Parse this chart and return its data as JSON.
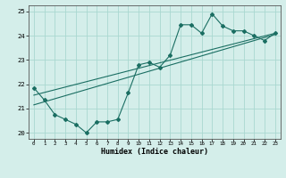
{
  "title": "",
  "xlabel": "Humidex (Indice chaleur)",
  "bg_color": "#d4eeea",
  "line_color": "#1a6e62",
  "grid_color": "#aad8d0",
  "xlim": [
    -0.5,
    23.5
  ],
  "ylim": [
    19.75,
    25.25
  ],
  "xticks": [
    0,
    1,
    2,
    3,
    4,
    5,
    6,
    7,
    8,
    9,
    10,
    11,
    12,
    13,
    14,
    15,
    16,
    17,
    18,
    19,
    20,
    21,
    22,
    23
  ],
  "yticks": [
    20,
    21,
    22,
    23,
    24,
    25
  ],
  "series1_y": [
    21.85,
    21.35,
    20.75,
    20.55,
    20.35,
    20.0,
    20.45,
    20.45,
    20.55,
    21.65,
    22.8,
    22.9,
    22.7,
    23.2,
    24.45,
    24.45,
    24.1,
    24.9,
    24.4,
    24.2,
    24.2,
    24.0,
    23.8,
    24.1
  ],
  "trend1_x": [
    0,
    23
  ],
  "trend1_y": [
    21.55,
    24.1
  ],
  "trend2_x": [
    0,
    23
  ],
  "trend2_y": [
    21.15,
    24.05
  ],
  "ylabel_vals": [
    "20",
    "21",
    "22",
    "23",
    "24",
    "25"
  ]
}
